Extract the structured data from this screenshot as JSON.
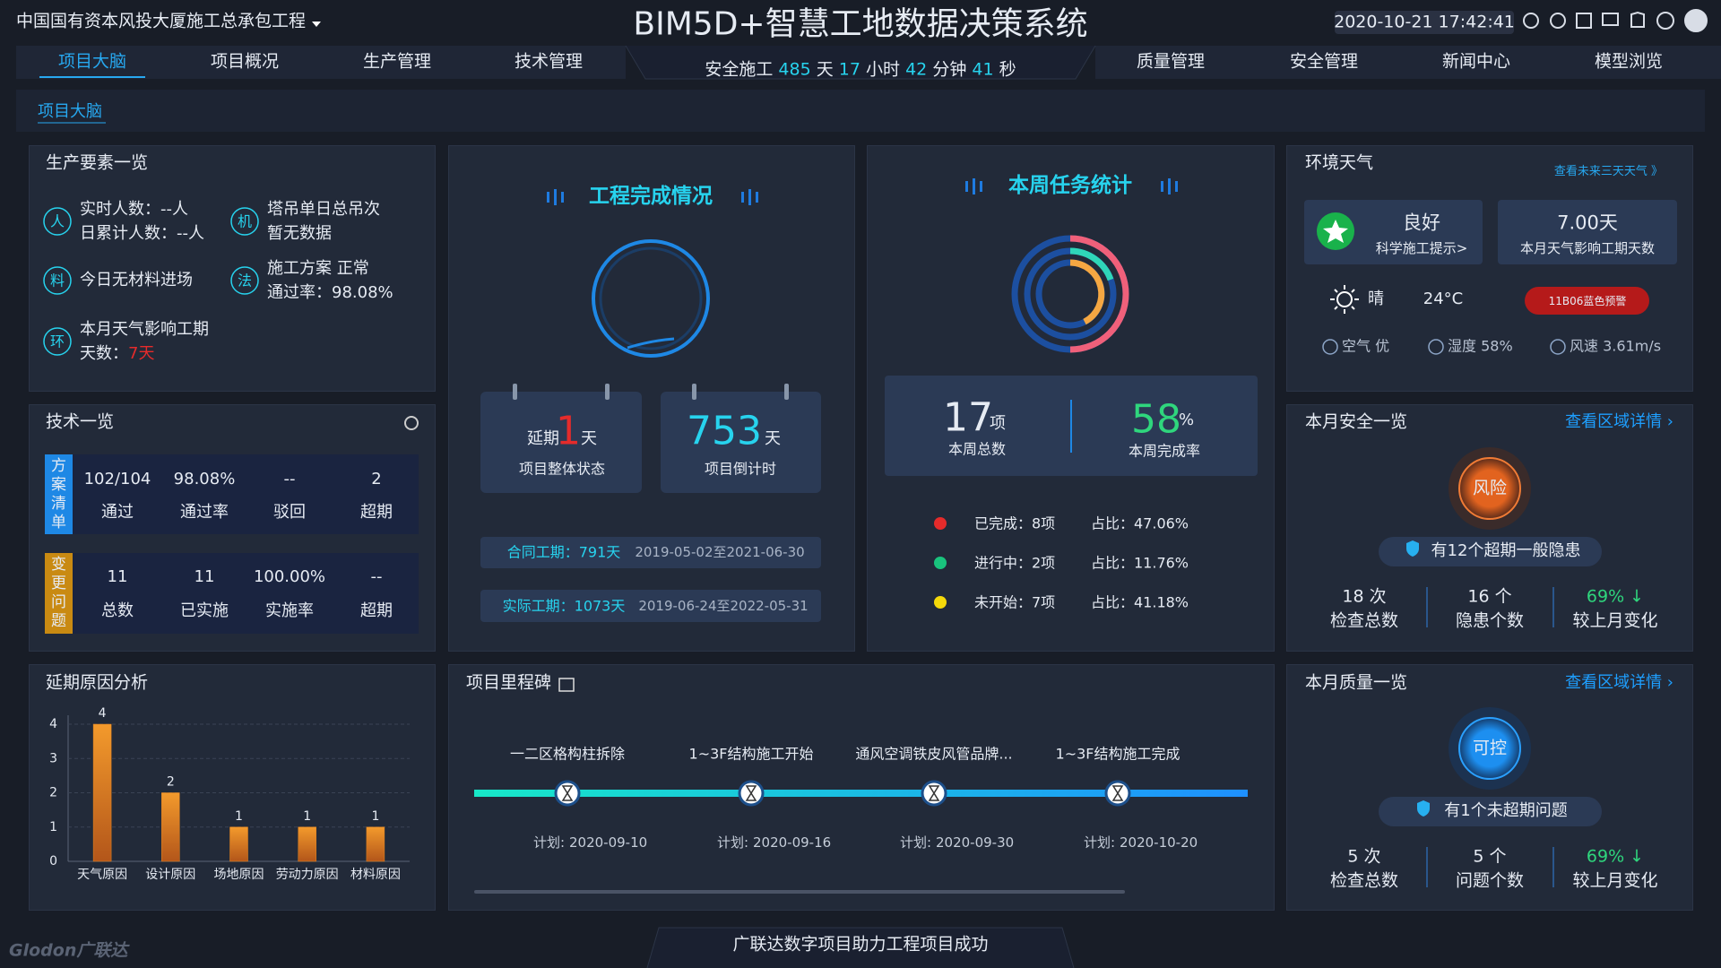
{
  "header": {
    "project": "中国国有资本风投大厦施工总承包工程",
    "title": "BIM5D+智慧工地数据决策系统",
    "datetime": "2020-10-21 17:42:41",
    "nav_left": [
      "项目大脑",
      "项目概况",
      "生产管理",
      "技术管理"
    ],
    "nav_right": [
      "质量管理",
      "安全管理",
      "新闻中心",
      "模型浏览"
    ],
    "safe": {
      "label": "安全施工",
      "days": "485",
      "d": "天",
      "hours": "17",
      "h": "小时",
      "minutes": "42",
      "m": "分钟",
      "seconds": "41",
      "s": "秒"
    }
  },
  "breadcrumb": "项目大脑",
  "production": {
    "title": "生产要素一览",
    "items": [
      {
        "icon": "人",
        "lines": [
          "实时人数：--人",
          "日累计人数：--人"
        ]
      },
      {
        "icon": "机",
        "lines": [
          "塔吊单日总吊次",
          "暂无数据"
        ]
      },
      {
        "icon": "料",
        "lines": [
          "今日无材料进场"
        ]
      },
      {
        "icon": "法",
        "lines": [
          "施工方案  正常",
          "通过率：98.08%"
        ]
      },
      {
        "icon": "环",
        "lines": [
          "本月天气影响工期",
          "天数："
        ],
        "highlight": "7天"
      }
    ]
  },
  "tech": {
    "title": "技术一览",
    "groups": [
      {
        "tag": "方案清单",
        "values": [
          "102/104",
          "98.08%",
          "--",
          "2"
        ],
        "labels": [
          "通过",
          "通过率",
          "驳回",
          "超期"
        ]
      },
      {
        "tag": "变更问题",
        "values": [
          "11",
          "11",
          "100.00%",
          "--"
        ],
        "labels": [
          "总数",
          "已实施",
          "实施率",
          "超期"
        ]
      }
    ]
  },
  "completion": {
    "title": "工程完成情况",
    "delay": {
      "label": "延期",
      "value": "1",
      "unit": "天",
      "caption": "项目整体状态"
    },
    "countdown": {
      "value": "753",
      "unit": "天",
      "caption": "项目倒计时"
    },
    "contract": {
      "label": "合同工期：791天",
      "range": "2019-05-02至2021-06-30"
    },
    "actual": {
      "label": "实际工期：1073天",
      "range": "2019-06-24至2022-05-31"
    }
  },
  "weekly": {
    "title": "本周任务统计",
    "total": {
      "value": "17",
      "unit": "项",
      "caption": "本周总数"
    },
    "rate": {
      "value": "58",
      "unit": "%",
      "caption": "本周完成率"
    },
    "rows": [
      {
        "status": "已完成：8项",
        "share": "占比：47.06%"
      },
      {
        "status": "进行中：2项",
        "share": "占比：11.76%"
      },
      {
        "status": "未开始：7项",
        "share": "占比：41.18%"
      }
    ]
  },
  "weather": {
    "title": "环境天气",
    "more": "查看未来三天天气 》",
    "quality": "良好",
    "tip": "科学施工提示>",
    "days": "7.00天",
    "days_caption": "本月天气影响工期天数",
    "condition": "晴",
    "temp": "24°C",
    "alert": "11B06蓝色预警",
    "air": "空气 优",
    "humidity": "湿度 58%",
    "wind": "风速 3.61m/s"
  },
  "safety": {
    "title": "本月安全一览",
    "more": "查看区域详情 ›",
    "badge": "风险",
    "notice": "有12个超期一般隐患",
    "stats": [
      {
        "value": "18 次",
        "label": "检查总数"
      },
      {
        "value": "16 个",
        "label": "隐患个数"
      },
      {
        "value": "69% ↓",
        "label": "较上月变化"
      }
    ]
  },
  "quality": {
    "title": "本月质量一览",
    "more": "查看区域详情 ›",
    "badge": "可控",
    "notice": "有1个未超期问题",
    "stats": [
      {
        "value": "5 次",
        "label": "检查总数"
      },
      {
        "value": "5 个",
        "label": "问题个数"
      },
      {
        "value": "69% ↓",
        "label": "较上月变化"
      }
    ]
  },
  "milestones": {
    "title": "项目里程碑",
    "items": [
      {
        "name": "一二区格构柱拆除",
        "plan": "计划:",
        "date": "2020-09-10"
      },
      {
        "name": "1~3F结构施工开始",
        "plan": "计划:",
        "date": "2020-09-16"
      },
      {
        "name": "通风空调铁皮风管品牌...",
        "plan": "计划:",
        "date": "2020-09-30"
      },
      {
        "name": "1~3F结构施工完成",
        "plan": "计划:",
        "date": "2020-10-20"
      }
    ]
  },
  "chart_data": {
    "type": "bar",
    "title": "延期原因分析",
    "categories": [
      "天气原因",
      "设计原因",
      "场地原因",
      "劳动力原因",
      "材料原因"
    ],
    "values": [
      4,
      2,
      1,
      1,
      1
    ],
    "ylim": [
      0,
      4
    ],
    "yticks": [
      0,
      1,
      2,
      3,
      4
    ],
    "grid": true,
    "color": "#e8861f"
  },
  "footer": "广联达数字项目助力工程项目成功",
  "logo": "Glodon广联达"
}
